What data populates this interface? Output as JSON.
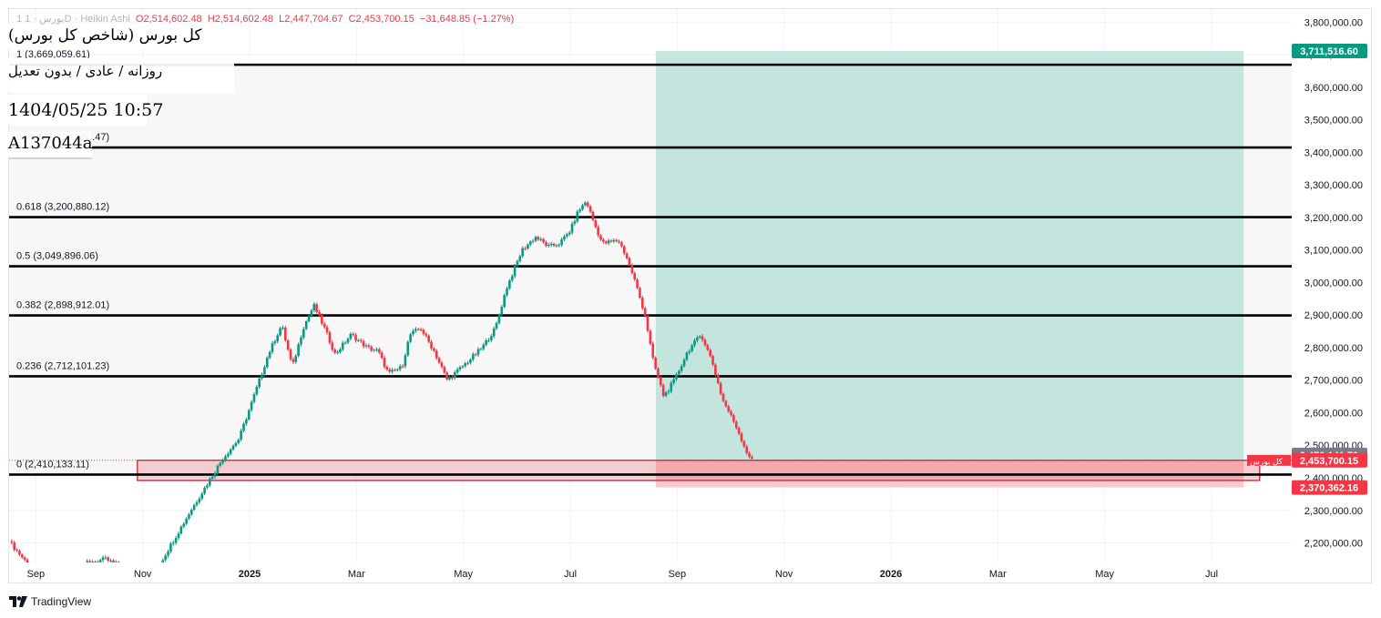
{
  "legend": {
    "symbol": "1 بورس",
    "interval": "1D",
    "style": "Heikin Ashi",
    "open": "O2,514,602.48",
    "high": "H2,514,602.48",
    "low": "L2,447,704.67",
    "close": "C2,453,700.15",
    "change": "−31,648.85 (−1.27%)"
  },
  "info_box": {
    "title": "کل بورس (شاخص کل بورس)",
    "subtitle": "روزانه / عادی / بدون تعدیل",
    "datetime": "1404/05/25 10:57",
    "code": "A137044a"
  },
  "branding": {
    "name": "TradingView"
  },
  "colors": {
    "up": "#089981",
    "down": "#f23645",
    "target_zone": "#b2dfd4",
    "stop_zone": "#f7b9c0",
    "fib_line": "#000000",
    "fib_band": "#f7f7f7"
  },
  "price_labels": {
    "target": "3,711,516.60",
    "mid": "2,470,141.70",
    "last": "2,453,700.15",
    "stop": "2,370,362.16",
    "symbol_tag": "کل بورس"
  },
  "chart_data": {
    "type": "candlestick",
    "style": "Heikin Ashi",
    "interval": "1D",
    "y_axis": {
      "range": [
        2140000,
        3840000
      ],
      "ticks": [
        3800000,
        3700000,
        3600000,
        3500000,
        3400000,
        3300000,
        3200000,
        3100000,
        3000000,
        2900000,
        2800000,
        2700000,
        2600000,
        2500000,
        2400000,
        2300000,
        2200000
      ],
      "tick_labels": [
        "3,800,000.00",
        "3,700,000.00",
        "3,600,000.00",
        "3,500,000.00",
        "3,400,000.00",
        "3,300,000.00",
        "3,200,000.00",
        "3,100,000.00",
        "3,000,000.00",
        "2,900,000.00",
        "2,800,000.00",
        "2,700,000.00",
        "2,600,000.00",
        "2,500,000.00",
        "2,400,000.00",
        "2,300,000.00",
        "2,200,000.00"
      ]
    },
    "x_axis": {
      "tick_labels": [
        "Sep",
        "Nov",
        "2025",
        "Mar",
        "May",
        "Jul",
        "Sep",
        "Nov",
        "2026",
        "Mar",
        "May",
        "Jul"
      ],
      "tick_months": [
        0,
        2,
        4,
        6,
        8,
        10,
        12,
        14,
        16,
        18,
        20,
        22
      ],
      "range_months": [
        -0.5,
        23.5
      ]
    },
    "fib_levels": [
      {
        "ratio": "1",
        "price": 3669059.61,
        "label": "1 (3,669,059.61)"
      },
      {
        "ratio": "0.786",
        "price": 3414960.47,
        "label": "0.786 (3,414,960.47)"
      },
      {
        "ratio": "0.618",
        "price": 3200880.12,
        "label": "0.618 (3,200,880.12)"
      },
      {
        "ratio": "0.5",
        "price": 3049896.06,
        "label": "0.5 (3,049,896.06)"
      },
      {
        "ratio": "0.382",
        "price": 2898912.01,
        "label": "0.382 (2,898,912.01)"
      },
      {
        "ratio": "0.236",
        "price": 2712101.23,
        "label": "0.236 (2,712,101.23)"
      },
      {
        "ratio": "0",
        "price": 2410133.11,
        "label": "0 (2,410,133.11)"
      }
    ],
    "fib_start_month": -0.5,
    "position": {
      "entry": 2453700,
      "target": 3711516.6,
      "stop": 2370362.16,
      "start_month": 11.6,
      "end_month": 22.6
    },
    "support_zone": {
      "top": 2454000,
      "bottom": 2392000,
      "start_month": 1.9,
      "end_month": 22.9
    },
    "price_path": [
      [
        -0.5,
        2205000
      ],
      [
        -0.2,
        2145000
      ],
      [
        0.0,
        2110000
      ],
      [
        0.5,
        2080000
      ],
      [
        0.9,
        2135000
      ],
      [
        1.3,
        2150000
      ],
      [
        1.7,
        2120000
      ],
      [
        2.0,
        2090000
      ],
      [
        2.3,
        2130000
      ],
      [
        2.6,
        2215000
      ],
      [
        2.9,
        2300000
      ],
      [
        3.2,
        2380000
      ],
      [
        3.5,
        2460000
      ],
      [
        3.8,
        2520000
      ],
      [
        4.1,
        2660000
      ],
      [
        4.35,
        2780000
      ],
      [
        4.6,
        2870000
      ],
      [
        4.8,
        2740000
      ],
      [
        5.0,
        2860000
      ],
      [
        5.2,
        2930000
      ],
      [
        5.4,
        2860000
      ],
      [
        5.6,
        2780000
      ],
      [
        5.9,
        2840000
      ],
      [
        6.2,
        2800000
      ],
      [
        6.4,
        2790000
      ],
      [
        6.6,
        2720000
      ],
      [
        6.85,
        2740000
      ],
      [
        7.0,
        2840000
      ],
      [
        7.2,
        2860000
      ],
      [
        7.45,
        2790000
      ],
      [
        7.7,
        2700000
      ],
      [
        7.9,
        2730000
      ],
      [
        8.1,
        2760000
      ],
      [
        8.35,
        2800000
      ],
      [
        8.6,
        2860000
      ],
      [
        8.8,
        2980000
      ],
      [
        9.1,
        3100000
      ],
      [
        9.35,
        3140000
      ],
      [
        9.6,
        3110000
      ],
      [
        9.8,
        3120000
      ],
      [
        10.0,
        3160000
      ],
      [
        10.15,
        3220000
      ],
      [
        10.3,
        3250000
      ],
      [
        10.45,
        3180000
      ],
      [
        10.6,
        3120000
      ],
      [
        10.9,
        3130000
      ],
      [
        11.05,
        3080000
      ],
      [
        11.2,
        3010000
      ],
      [
        11.4,
        2900000
      ],
      [
        11.55,
        2760000
      ],
      [
        11.75,
        2650000
      ],
      [
        11.95,
        2700000
      ],
      [
        12.2,
        2790000
      ],
      [
        12.45,
        2840000
      ],
      [
        12.65,
        2760000
      ],
      [
        12.85,
        2640000
      ],
      [
        13.1,
        2560000
      ],
      [
        13.3,
        2480000
      ],
      [
        13.4,
        2453700
      ]
    ]
  }
}
